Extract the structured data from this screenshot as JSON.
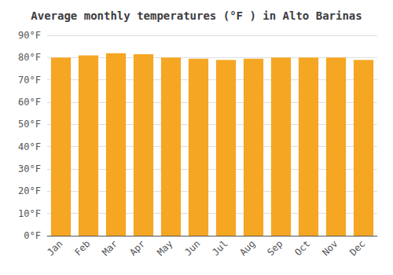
{
  "chart_data": {
    "type": "bar",
    "title": "Average monthly temperatures (°F ) in Alto Barinas",
    "categories": [
      "Jan",
      "Feb",
      "Mar",
      "Apr",
      "May",
      "Jun",
      "Jul",
      "Aug",
      "Sep",
      "Oct",
      "Nov",
      "Dec"
    ],
    "values": [
      80,
      81,
      82,
      81.5,
      80,
      79.5,
      79,
      79.5,
      80,
      80,
      80,
      79
    ],
    "color": "#F5A623",
    "ylim": [
      0,
      90
    ],
    "yticks": [
      {
        "value": 0,
        "label": "0°F"
      },
      {
        "value": 10,
        "label": "10°F"
      },
      {
        "value": 20,
        "label": "20°F"
      },
      {
        "value": 30,
        "label": "30°F"
      },
      {
        "value": 40,
        "label": "40°F"
      },
      {
        "value": 50,
        "label": "50°F"
      },
      {
        "value": 60,
        "label": "60°F"
      },
      {
        "value": 70,
        "label": "70°F"
      },
      {
        "value": 80,
        "label": "80°F"
      },
      {
        "value": 90,
        "label": "90°F"
      }
    ],
    "grid": true
  }
}
